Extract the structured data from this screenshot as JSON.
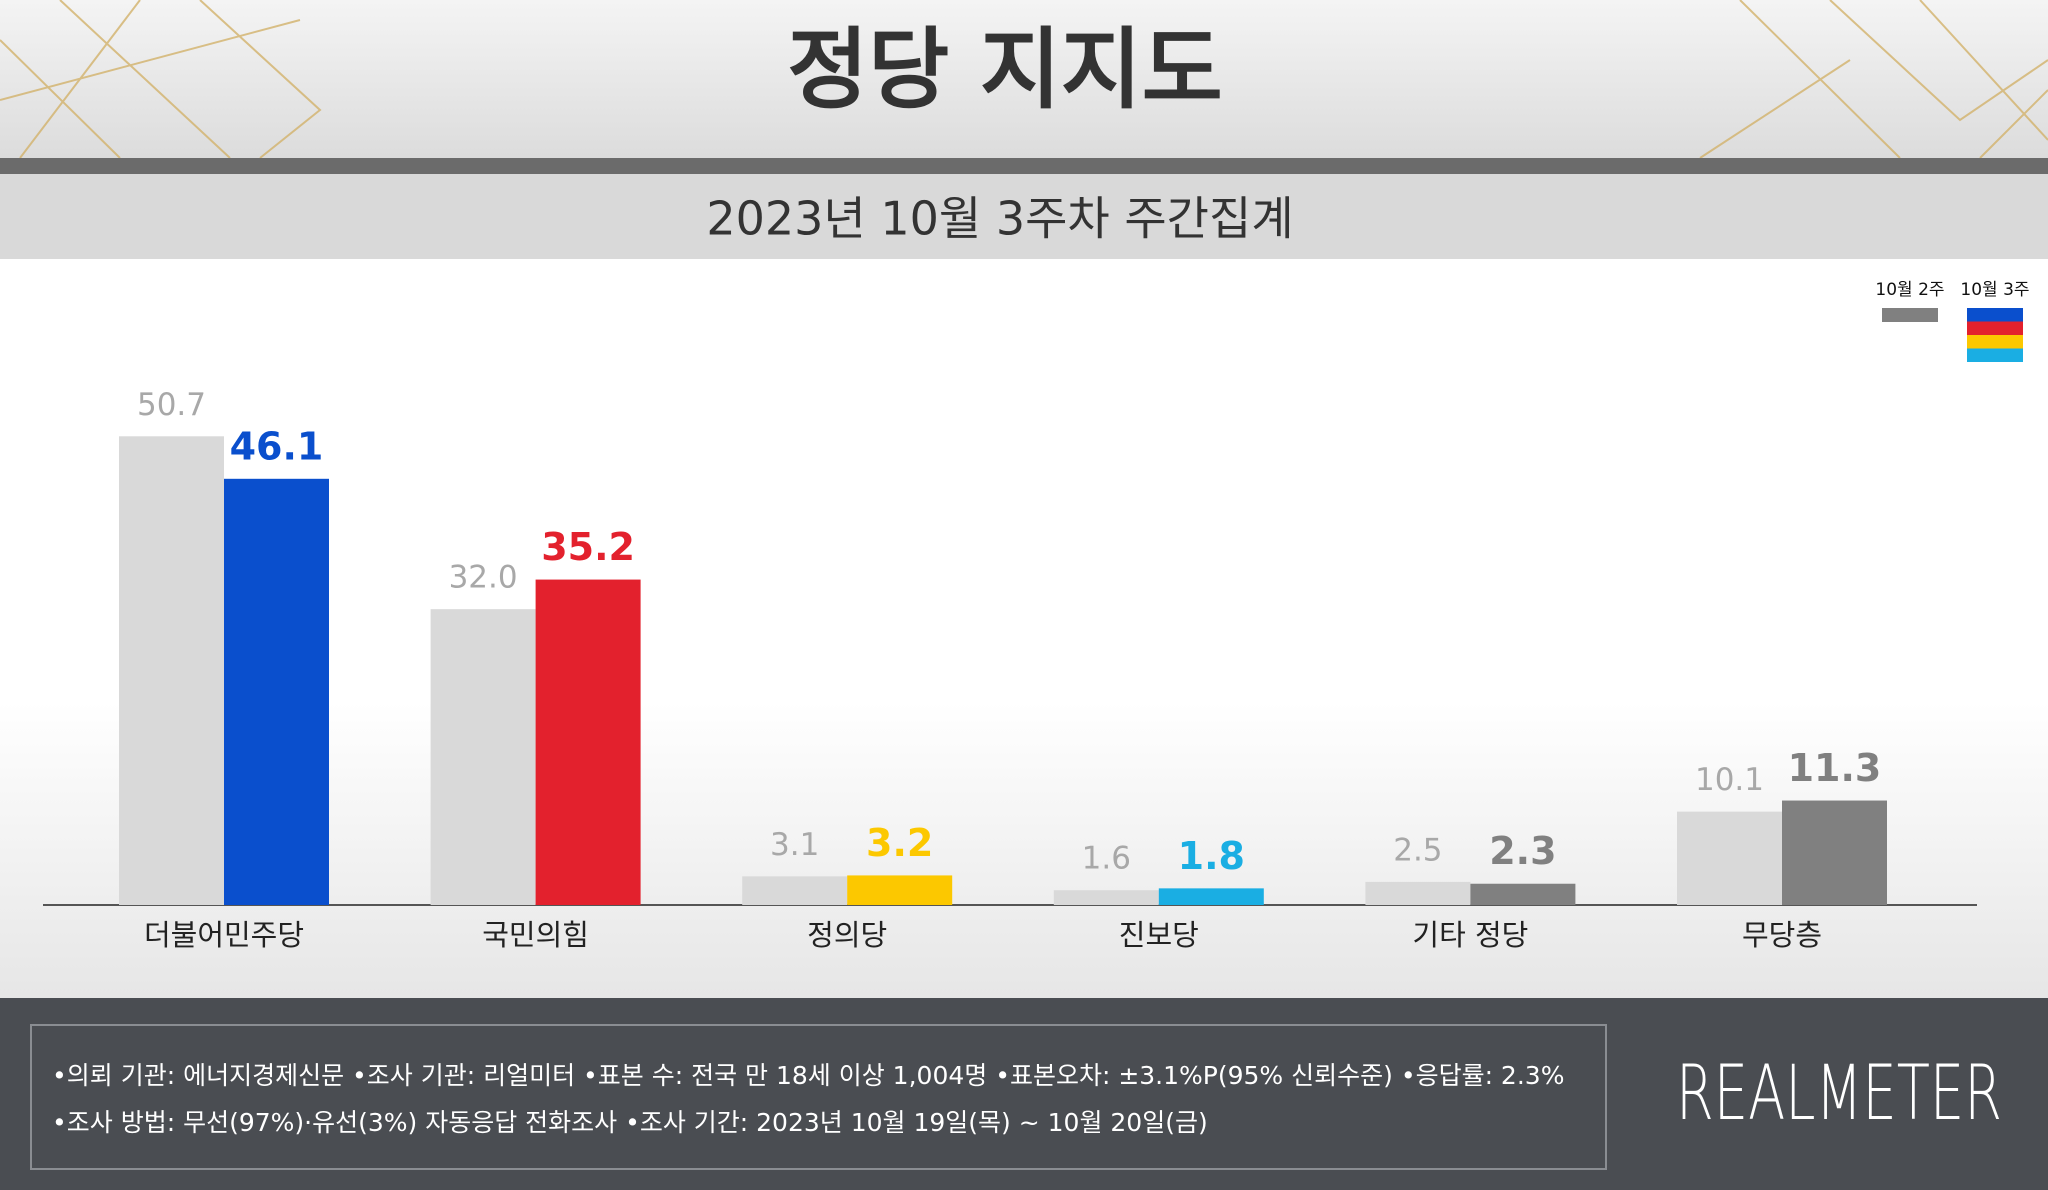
{
  "chart_data": {
    "type": "bar",
    "title": "정당 지지도",
    "subtitle": "2023년 10월 3주차 주간집계",
    "categories": [
      "더불어민주당",
      "국민의힘",
      "정의당",
      "진보당",
      "기타 정당",
      "무당층"
    ],
    "series": [
      {
        "name": "10월 2주",
        "color": "#d9d9d9",
        "values": [
          50.7,
          32.0,
          3.1,
          1.6,
          2.5,
          10.1
        ],
        "value_labels": [
          "50.7",
          "32.0",
          "3.1",
          "1.6",
          "2.5",
          "10.1"
        ]
      },
      {
        "name": "10월 3주",
        "colors": [
          "#0a4fcd",
          "#e3212d",
          "#fcc800",
          "#1aaee3",
          "#808080",
          "#808080"
        ],
        "values": [
          46.1,
          35.2,
          3.2,
          1.8,
          2.3,
          11.3
        ],
        "value_labels": [
          "46.1",
          "35.2",
          "3.2",
          "1.8",
          "2.3",
          "11.3"
        ]
      }
    ],
    "notes": [
      "•의뢰 기관: 에너지경제신문  •조사 기관: 리얼미터 •표본 수: 전국 만 18세 이상 1,004명 •표본오차: ±3.1%P(95% 신뢰수준) •응답률: 2.3%",
      "•조사 방법: 무선(97%)·유선(3%) 자동응답 전화조사 •조사 기간: 2023년 10월 19일(목) ~ 10월 20일(금)"
    ],
    "brand": "REALMETER"
  }
}
